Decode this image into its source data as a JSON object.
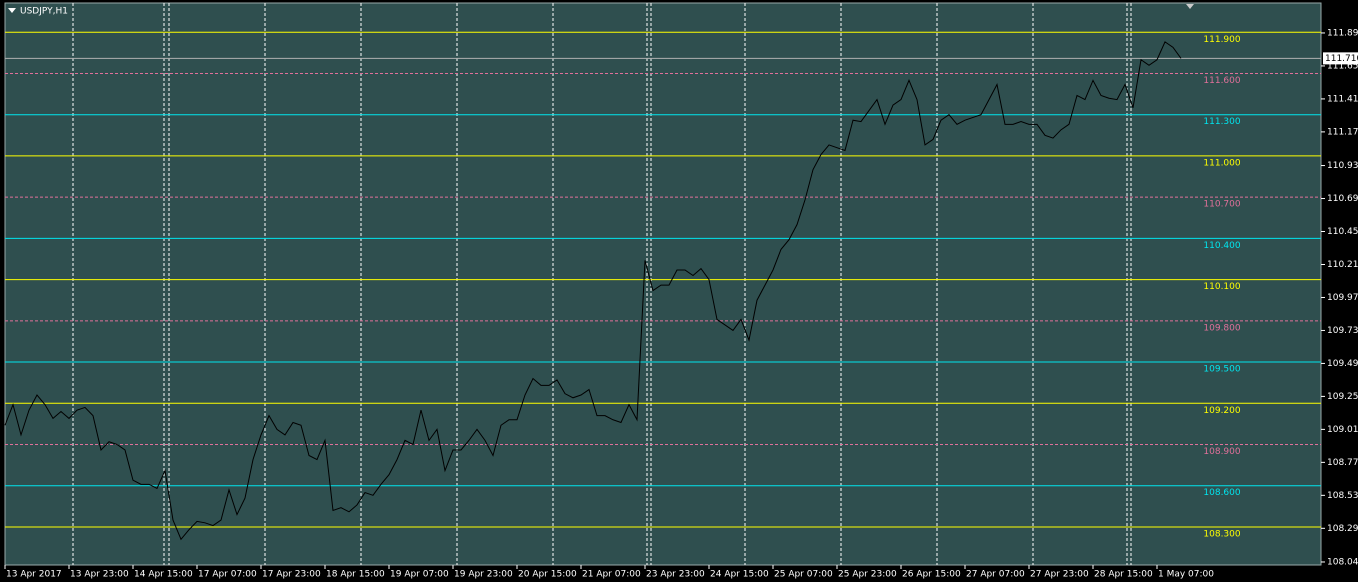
{
  "chart_data": {
    "type": "line",
    "title": "USDJPY,H1",
    "ylim": [
      108.023,
      112.113
    ],
    "yticks": [
      111.895,
      111.655,
      111.415,
      111.175,
      {
        "value": 110.93,
        "label": "110.930"
      },
      110.69,
      110.45,
      {
        "value": 110.21,
        "label": "110.210"
      },
      {
        "value": 109.97,
        "label": "109.970"
      },
      {
        "value": 109.73,
        "label": "109.730"
      },
      {
        "value": 109.49,
        "label": "109.490"
      },
      {
        "value": 109.25,
        "label": "109.250"
      },
      {
        "value": 109.01,
        "label": "109.010"
      },
      {
        "value": 108.77,
        "label": "108.770"
      },
      {
        "value": 108.53,
        "label": "108.530"
      },
      {
        "value": 108.29,
        "label": "108.290"
      },
      108.045
    ],
    "last_price": {
      "value": 111.71,
      "label": "111.710"
    },
    "levels": [
      {
        "value": 111.9,
        "label": "111.900",
        "color": "#ffff00",
        "style": "solid"
      },
      {
        "value": 111.6,
        "label": "111.600",
        "color": "#e0709a",
        "style": "dashed"
      },
      {
        "value": 111.3,
        "label": "111.300",
        "color": "#00e5ee",
        "style": "solid"
      },
      {
        "value": 111.0,
        "label": "111.000",
        "color": "#ffff00",
        "style": "solid"
      },
      {
        "value": 110.7,
        "label": "110.700",
        "color": "#e0709a",
        "style": "dashed"
      },
      {
        "value": 110.4,
        "label": "110.400",
        "color": "#00e5ee",
        "style": "solid"
      },
      {
        "value": 110.1,
        "label": "110.100",
        "color": "#ffff00",
        "style": "solid"
      },
      {
        "value": 109.8,
        "label": "109.800",
        "color": "#e0709a",
        "style": "dashed"
      },
      {
        "value": 109.5,
        "label": "109.500",
        "color": "#00e5ee",
        "style": "solid"
      },
      {
        "value": 109.2,
        "label": "109.200",
        "color": "#ffff00",
        "style": "solid"
      },
      {
        "value": 108.9,
        "label": "108.900",
        "color": "#e0709a",
        "style": "dashed"
      },
      {
        "value": 108.6,
        "label": "108.600",
        "color": "#00e5ee",
        "style": "solid"
      },
      {
        "value": 108.3,
        "label": "108.300",
        "color": "#ffff00",
        "style": "solid"
      }
    ],
    "categories": [
      "13 Apr 2017",
      null,
      null,
      null,
      null,
      null,
      null,
      null,
      "13 Apr 23:00",
      null,
      null,
      null,
      null,
      null,
      null,
      null,
      "14 Apr 15:00",
      null,
      null,
      null,
      null,
      null,
      null,
      null,
      "17 Apr 07:00",
      null,
      null,
      null,
      null,
      null,
      null,
      null,
      "17 Apr 23:00",
      null,
      null,
      null,
      null,
      null,
      null,
      null,
      "18 Apr 15:00",
      null,
      null,
      null,
      null,
      null,
      null,
      null,
      "19 Apr 07:00",
      null,
      null,
      null,
      null,
      null,
      null,
      null,
      "19 Apr 23:00",
      null,
      null,
      null,
      null,
      null,
      null,
      null,
      "20 Apr 15:00",
      null,
      null,
      null,
      null,
      null,
      null,
      null,
      "21 Apr 07:00",
      null,
      null,
      null,
      null,
      null,
      null,
      null,
      "23 Apr 23:00",
      null,
      null,
      null,
      null,
      null,
      null,
      null,
      "24 Apr 15:00",
      null,
      null,
      null,
      null,
      null,
      null,
      null,
      "25 Apr 07:00",
      null,
      null,
      null,
      null,
      null,
      null,
      null,
      "25 Apr 23:00",
      null,
      null,
      null,
      null,
      null,
      null,
      null,
      "26 Apr 15:00",
      null,
      null,
      null,
      null,
      null,
      null,
      null,
      "27 Apr 07:00",
      null,
      null,
      null,
      null,
      null,
      null,
      null,
      "27 Apr 23:00",
      null,
      null,
      null,
      null,
      null,
      null,
      null,
      "28 Apr 15:00",
      null,
      null,
      null,
      null,
      null,
      null,
      null,
      "1 May 07:00",
      null,
      null,
      null
    ],
    "series": [
      {
        "name": "USDJPY",
        "color": "#000000",
        "values": [
          109.04,
          109.19,
          108.97,
          109.15,
          109.26,
          109.19,
          109.09,
          109.14,
          109.09,
          109.15,
          109.17,
          109.11,
          108.86,
          108.92,
          108.9,
          108.86,
          108.64,
          108.61,
          108.61,
          108.58,
          108.71,
          108.35,
          108.21,
          108.28,
          108.34,
          108.33,
          108.31,
          108.35,
          108.57,
          108.39,
          108.51,
          108.79,
          108.97,
          109.11,
          109.01,
          108.97,
          109.06,
          109.04,
          108.82,
          108.79,
          108.93,
          108.42,
          108.44,
          108.41,
          108.46,
          108.55,
          108.53,
          108.61,
          108.68,
          108.79,
          108.93,
          108.9,
          109.15,
          108.93,
          109.01,
          108.71,
          108.86,
          108.86,
          108.93,
          109.01,
          108.93,
          108.82,
          109.04,
          109.08,
          109.08,
          109.26,
          109.38,
          109.33,
          109.33,
          109.37,
          109.27,
          109.24,
          109.26,
          109.3,
          109.11,
          109.11,
          109.08,
          109.06,
          109.19,
          109.08,
          110.24,
          110.02,
          110.06,
          110.06,
          110.17,
          110.17,
          110.13,
          110.18,
          110.1,
          109.81,
          109.77,
          109.73,
          109.81,
          109.66,
          109.95,
          110.06,
          110.17,
          110.32,
          110.39,
          110.5,
          110.68,
          110.9,
          111.01,
          111.08,
          111.06,
          111.04,
          111.26,
          111.25,
          111.33,
          111.41,
          111.23,
          111.37,
          111.41,
          111.55,
          111.41,
          111.08,
          111.12,
          111.26,
          111.3,
          111.23,
          111.26,
          111.28,
          111.3,
          111.41,
          111.52,
          111.23,
          111.23,
          111.25,
          111.23,
          111.23,
          111.15,
          111.13,
          111.19,
          111.23,
          111.44,
          111.41,
          111.55,
          111.44,
          111.42,
          111.41,
          111.52,
          111.35,
          111.7,
          111.66,
          111.7,
          111.83,
          111.79,
          111.71
        ]
      }
    ]
  }
}
